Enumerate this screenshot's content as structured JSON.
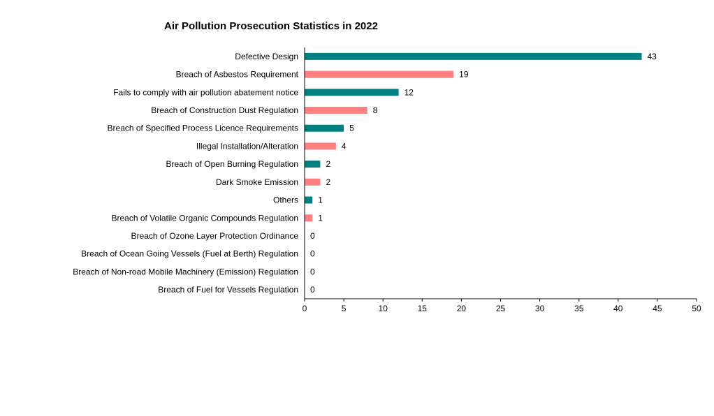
{
  "chart_data": {
    "type": "bar",
    "orientation": "horizontal",
    "title": "Air Pollution Prosecution Statistics in 2022",
    "categories": [
      "Defective Design",
      "Breach of Asbestos Requirement",
      "Fails to comply with air pollution abatement notice",
      "Breach of Construction Dust Regulation",
      "Breach of Specified Process Licence Requirements",
      "Illegal Installation/Alteration",
      "Breach of Open Burning Regulation",
      "Dark Smoke Emission",
      "Others",
      "Breach of Volatile Organic Compounds Regulation",
      "Breach of Ozone Layer Protection Ordinance",
      "Breach of Ocean Going Vessels (Fuel at Berth) Regulation",
      "Breach of Non-road Mobile Machinery (Emission) Regulation",
      "Breach of Fuel for Vessels Regulation"
    ],
    "values": [
      43,
      19,
      12,
      8,
      5,
      4,
      2,
      2,
      1,
      1,
      0,
      0,
      0,
      0
    ],
    "bar_colors": [
      "#008080",
      "#FF8080"
    ],
    "xlim": [
      0,
      50
    ],
    "xticks": [
      0,
      5,
      10,
      15,
      20,
      25,
      30,
      35,
      40,
      45,
      50
    ],
    "xlabel": "",
    "ylabel": "",
    "grid": false,
    "data_labels": true
  }
}
